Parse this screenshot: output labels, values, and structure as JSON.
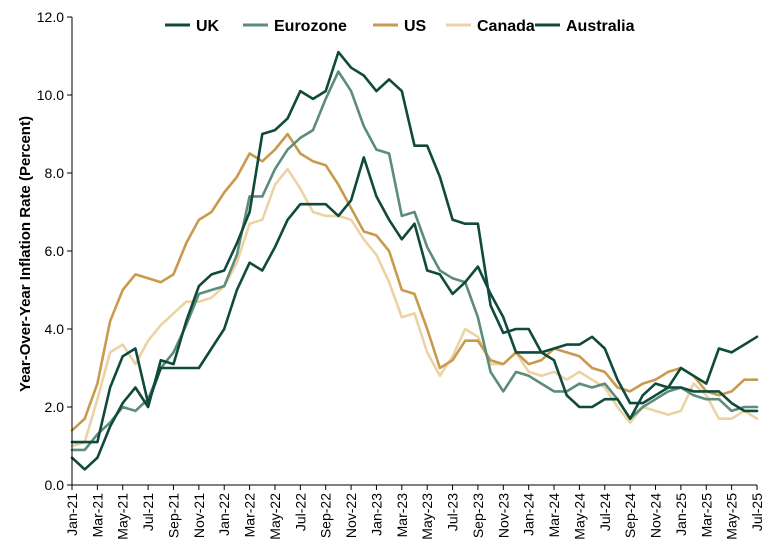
{
  "chart_data": {
    "type": "line",
    "ylabel": "Year-Over-Year Inflation Rate (Percent)",
    "xlabel": "",
    "ylim": [
      0,
      12
    ],
    "yticks": [
      "0.0",
      "2.0",
      "4.0",
      "6.0",
      "8.0",
      "10.0",
      "12.0"
    ],
    "x": [
      "Jan-21",
      "Feb-21",
      "Mar-21",
      "Apr-21",
      "May-21",
      "Jun-21",
      "Jul-21",
      "Aug-21",
      "Sep-21",
      "Oct-21",
      "Nov-21",
      "Dec-21",
      "Jan-22",
      "Feb-22",
      "Mar-22",
      "Apr-22",
      "May-22",
      "Jun-22",
      "Jul-22",
      "Aug-22",
      "Sep-22",
      "Oct-22",
      "Nov-22",
      "Dec-22",
      "Jan-23",
      "Feb-23",
      "Mar-23",
      "Apr-23",
      "May-23",
      "Jun-23",
      "Jul-23",
      "Aug-23",
      "Sep-23",
      "Oct-23",
      "Nov-23",
      "Dec-23",
      "Jan-24",
      "Feb-24",
      "Mar-24",
      "Apr-24",
      "May-24",
      "Jun-24",
      "Jul-24",
      "Aug-24",
      "Sep-24",
      "Oct-24",
      "Nov-24",
      "Dec-24",
      "Jan-25",
      "Feb-25",
      "Mar-25",
      "Apr-25",
      "May-25",
      "Jun-25",
      "Jul-25"
    ],
    "xtick_labels": [
      "Jan-21",
      "Mar-21",
      "May-21",
      "Jul-21",
      "Sep-21",
      "Nov-21",
      "Jan-22",
      "Mar-22",
      "May-22",
      "Jul-22",
      "Sep-22",
      "Nov-22",
      "Jan-23",
      "Mar-23",
      "May-23",
      "Jul-23",
      "Sep-23",
      "Nov-23",
      "Jan-24",
      "Mar-24",
      "May-24",
      "Jul-24",
      "Sep-24",
      "Nov-24",
      "Jan-25",
      "Mar-25",
      "May-25",
      "Jul-25"
    ],
    "legend_position": "top",
    "grid": false,
    "series": [
      {
        "name": "UK",
        "color": "#0f4a3c",
        "values": [
          0.7,
          0.4,
          0.7,
          1.5,
          2.1,
          2.5,
          2.0,
          3.2,
          3.1,
          4.2,
          5.1,
          5.4,
          5.5,
          6.2,
          7.0,
          9.0,
          9.1,
          9.4,
          10.1,
          9.9,
          10.1,
          11.1,
          10.7,
          10.5,
          10.1,
          10.4,
          10.1,
          8.7,
          8.7,
          7.9,
          6.8,
          6.7,
          6.7,
          4.6,
          3.9,
          4.0,
          4.0,
          3.4,
          3.2,
          2.3,
          2.0,
          2.0,
          2.2,
          2.2,
          1.7,
          2.3,
          2.6,
          2.5,
          3.0,
          2.8,
          2.6,
          3.5,
          3.4,
          3.6,
          3.8
        ]
      },
      {
        "name": "Eurozone",
        "color": "#5c8c7a",
        "values": [
          0.9,
          0.9,
          1.3,
          1.6,
          2.0,
          1.9,
          2.2,
          3.0,
          3.4,
          4.1,
          4.9,
          5.0,
          5.1,
          5.9,
          7.4,
          7.4,
          8.1,
          8.6,
          8.9,
          9.1,
          9.9,
          10.6,
          10.1,
          9.2,
          8.6,
          8.5,
          6.9,
          7.0,
          6.1,
          5.5,
          5.3,
          5.2,
          4.3,
          2.9,
          2.4,
          2.9,
          2.8,
          2.6,
          2.4,
          2.4,
          2.6,
          2.5,
          2.6,
          2.2,
          1.7,
          2.0,
          2.2,
          2.4,
          2.5,
          2.3,
          2.2,
          2.2,
          1.9,
          2.0,
          2.0
        ]
      },
      {
        "name": "US",
        "color": "#c99a4e",
        "values": [
          1.4,
          1.7,
          2.6,
          4.2,
          5.0,
          5.4,
          5.3,
          5.2,
          5.4,
          6.2,
          6.8,
          7.0,
          7.5,
          7.9,
          8.5,
          8.3,
          8.6,
          9.0,
          8.5,
          8.3,
          8.2,
          7.7,
          7.1,
          6.5,
          6.4,
          6.0,
          5.0,
          4.9,
          4.0,
          3.0,
          3.2,
          3.7,
          3.7,
          3.2,
          3.1,
          3.4,
          3.1,
          3.2,
          3.5,
          3.4,
          3.3,
          3.0,
          2.9,
          2.5,
          2.4,
          2.6,
          2.7,
          2.9,
          3.0,
          2.8,
          2.4,
          2.3,
          2.4,
          2.7,
          2.7
        ]
      },
      {
        "name": "Canada",
        "color": "#ecd3a5",
        "values": [
          1.0,
          1.1,
          2.2,
          3.4,
          3.6,
          3.1,
          3.7,
          4.1,
          4.4,
          4.7,
          4.7,
          4.8,
          5.1,
          5.7,
          6.7,
          6.8,
          7.7,
          8.1,
          7.6,
          7.0,
          6.9,
          6.9,
          6.8,
          6.3,
          5.9,
          5.2,
          4.3,
          4.4,
          3.4,
          2.8,
          3.3,
          4.0,
          3.8,
          3.1,
          3.1,
          3.4,
          2.9,
          2.8,
          2.9,
          2.7,
          2.9,
          2.7,
          2.5,
          2.0,
          1.6,
          2.0,
          1.9,
          1.8,
          1.9,
          2.6,
          2.3,
          1.7,
          1.7,
          1.9,
          1.7
        ]
      },
      {
        "name": "Australia",
        "color": "#0f4a3c",
        "values": [
          1.1,
          1.1,
          1.1,
          2.5,
          3.3,
          3.5,
          2.1,
          3.0,
          3.0,
          3.0,
          3.0,
          3.5,
          4.0,
          5.0,
          5.7,
          5.5,
          6.1,
          6.8,
          7.2,
          7.2,
          7.2,
          6.9,
          7.3,
          8.4,
          7.4,
          6.8,
          6.3,
          6.7,
          5.5,
          5.4,
          4.9,
          5.2,
          5.6,
          4.9,
          4.3,
          3.4,
          3.4,
          3.4,
          3.5,
          3.6,
          3.6,
          3.8,
          3.5,
          2.7,
          2.1,
          2.1,
          2.3,
          2.5,
          2.5,
          2.4,
          2.4,
          2.4,
          2.1,
          1.9,
          1.9
        ]
      }
    ]
  }
}
